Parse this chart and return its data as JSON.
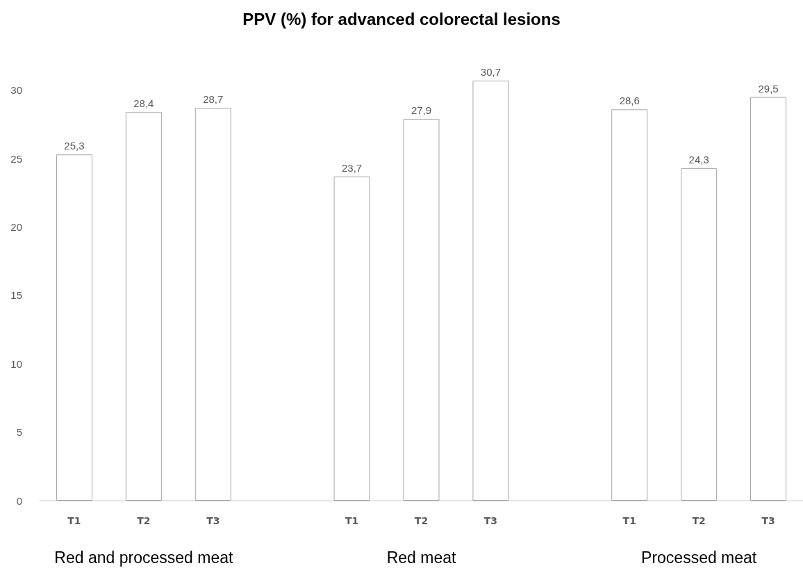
{
  "chart_data": {
    "type": "bar",
    "title": "PPV (%) for advanced colorectal lesions",
    "categories": [
      "T1",
      "T2",
      "T3",
      null,
      "T1",
      "T2",
      "T3",
      null,
      "T1",
      "T2",
      "T3"
    ],
    "values": [
      25.3,
      28.4,
      28.7,
      null,
      23.7,
      27.9,
      30.7,
      null,
      28.6,
      24.3,
      29.5
    ],
    "value_labels": [
      "25,3",
      "28,4",
      "28,7",
      null,
      "23,7",
      "27,9",
      "30,7",
      null,
      "28,6",
      "24,3",
      "29,5"
    ],
    "color": "#ffffff",
    "ylim": [
      0,
      30.7
    ],
    "yticks": [
      0,
      5,
      10,
      15,
      20,
      25,
      30
    ],
    "grid": false,
    "annotations": [
      "Red and processed meat",
      "Red meat",
      "Processed meat"
    ]
  }
}
